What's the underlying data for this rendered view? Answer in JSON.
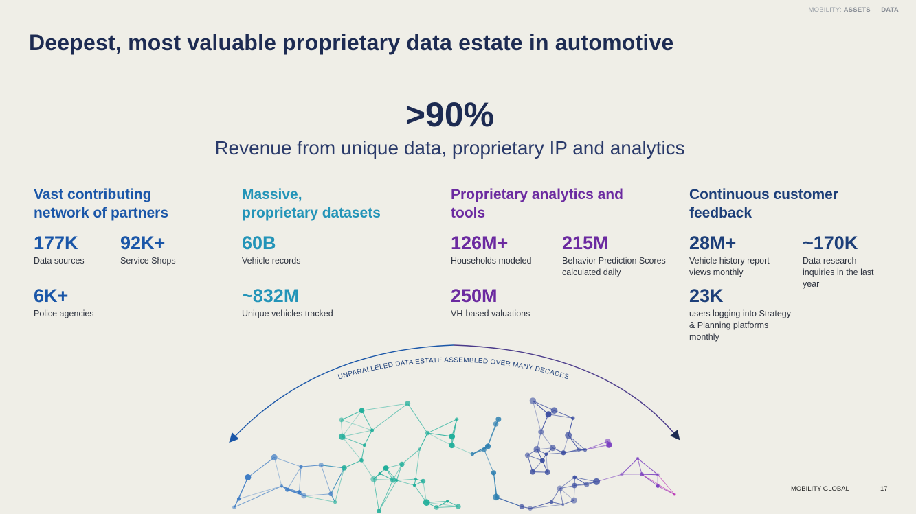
{
  "header": {
    "tag_prefix": "MOBILITY: ",
    "tag_bold": "ASSETS — DATA"
  },
  "title": "Deepest, most valuable proprietary data estate in automotive",
  "hero": {
    "value": ">90%",
    "description": "Revenue from unique data, proprietary IP and analytics"
  },
  "columns": [
    {
      "heading": [
        "Vast contributing",
        "network of partners"
      ],
      "color": "#1a56a8",
      "stats": [
        {
          "value": "177K",
          "label": "Data sources"
        },
        {
          "value": "92K+",
          "label": "Service Shops"
        },
        {
          "value": "6K+",
          "label": "Police agencies"
        }
      ]
    },
    {
      "heading": [
        "Massive,",
        "proprietary datasets"
      ],
      "color": "#2394b8",
      "stats": [
        {
          "value": "60B",
          "label": "Vehicle records"
        },
        {
          "value": "~832M",
          "label": "Unique vehicles tracked"
        }
      ]
    },
    {
      "heading": [
        "Proprietary analytics and",
        "tools"
      ],
      "color": "#6b2aa0",
      "stats": [
        {
          "value": "126M+",
          "label": "Households modeled"
        },
        {
          "value": "215M",
          "label": [
            "Behavior Prediction Scores",
            "calculated daily"
          ]
        },
        {
          "value": "250M",
          "label": "VH-based valuations"
        }
      ]
    },
    {
      "heading": [
        "Continuous customer",
        "feedback"
      ],
      "color": "#1d3f79",
      "stats": [
        {
          "value": "28M+",
          "label": [
            "Vehicle history report",
            "views monthly"
          ]
        },
        {
          "value": "~170K",
          "label": [
            "Data research",
            "inquiries in the last",
            "year"
          ]
        },
        {
          "value": "23K",
          "label": [
            "users logging into Strategy",
            "& Planning platforms",
            "monthly"
          ]
        }
      ]
    }
  ],
  "arc_caption": "UNPARALLELED DATA ESTATE ASSEMBLED OVER MANY DECADES",
  "footer": {
    "brand": "MOBILITY GLOBAL",
    "page": "17"
  }
}
